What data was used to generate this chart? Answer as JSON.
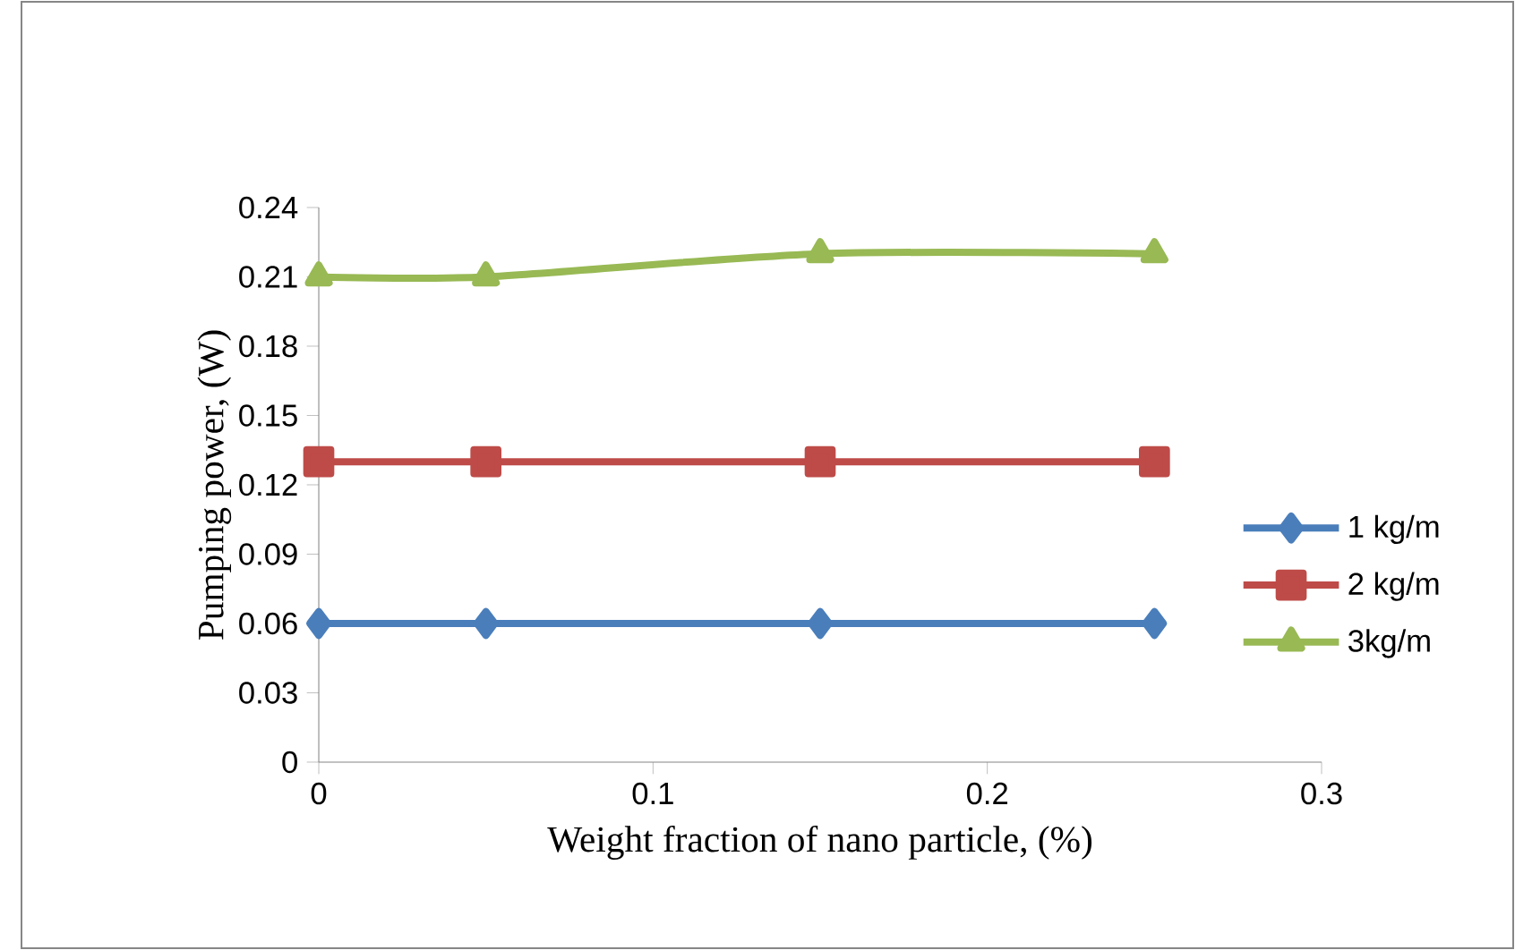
{
  "chart_data": {
    "type": "line",
    "xlabel": "Weight fraction of nano particle, (%)",
    "ylabel": "Pumping power, (W)",
    "x": [
      0,
      0.05,
      0.15,
      0.25
    ],
    "series": [
      {
        "name": "1 kg/m",
        "color": "#4a7ebb",
        "marker": "diamond",
        "values": [
          0.06,
          0.06,
          0.06,
          0.06
        ]
      },
      {
        "name": "2 kg/m",
        "color": "#be4b48",
        "marker": "square",
        "values": [
          0.13,
          0.13,
          0.13,
          0.13
        ]
      },
      {
        "name": "3kg/m",
        "color": "#98b954",
        "marker": "triangle",
        "values": [
          0.21,
          0.21,
          0.22,
          0.22
        ]
      }
    ],
    "xlim": [
      0,
      0.3
    ],
    "xticks": [
      0,
      0.1,
      0.2,
      0.3
    ],
    "ylim": [
      0,
      0.24
    ],
    "yticks": [
      0,
      0.03,
      0.06,
      0.09,
      0.12,
      0.15,
      0.18,
      0.21,
      0.24
    ],
    "grid": false,
    "legend": "right",
    "line_style": "solid"
  }
}
